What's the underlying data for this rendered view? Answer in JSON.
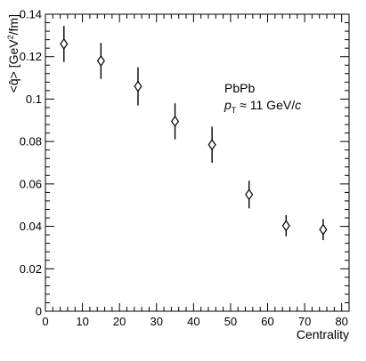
{
  "chart_data": {
    "type": "scatter",
    "xlabel": "Centrality",
    "ylabel": {
      "prefix": "<",
      "symbol": "q̂",
      "suffix": "> [GeV",
      "sup": "2",
      "unit_end": "/fm]"
    },
    "annotation": {
      "line1": "PbPb",
      "pt_symbol": "p",
      "pt_sub": "T",
      "pt_rest": " ≈ 11 GeV/",
      "pt_c": "c"
    },
    "xlim": [
      0,
      82
    ],
    "ylim": [
      0,
      0.14
    ],
    "x_ticks": [
      0,
      10,
      20,
      30,
      40,
      50,
      60,
      70,
      80
    ],
    "x_tick_labels": [
      "0",
      "10",
      "20",
      "30",
      "40",
      "50",
      "60",
      "70",
      "80"
    ],
    "y_ticks": [
      0,
      0.02,
      0.04,
      0.06,
      0.08,
      0.1,
      0.12,
      0.14
    ],
    "y_tick_labels": [
      "0",
      "0.02",
      "0.04",
      "0.06",
      "0.08",
      "0.1",
      "0.12",
      "0.14"
    ],
    "grid": false,
    "marker": "open-diamond",
    "series": [
      {
        "x": [
          5,
          15,
          25,
          35,
          45,
          55,
          65,
          75
        ],
        "y": [
          0.126,
          0.118,
          0.106,
          0.0895,
          0.0785,
          0.055,
          0.0403,
          0.0385
        ],
        "yerr": [
          0.0085,
          0.0085,
          0.009,
          0.0085,
          0.0085,
          0.0065,
          0.005,
          0.005
        ]
      }
    ]
  }
}
